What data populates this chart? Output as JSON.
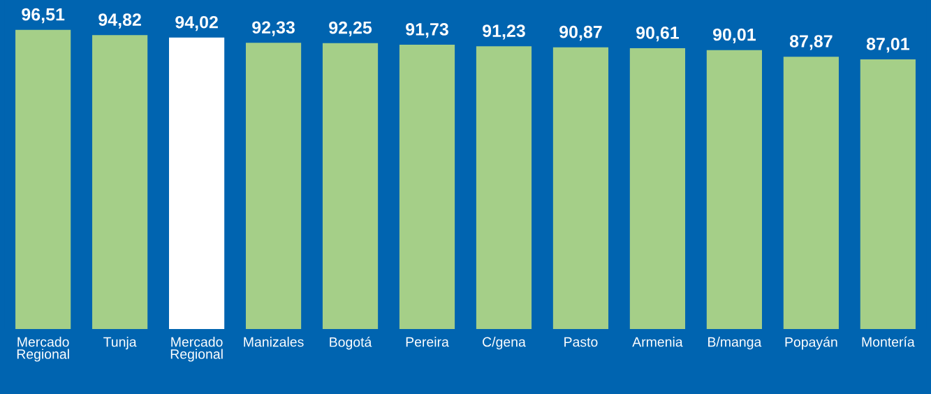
{
  "chart_data": {
    "type": "bar",
    "categories": [
      "Mercado\nRegional",
      "Tunja",
      "Mercado\nRegional",
      "Manizales",
      "Bogotá",
      "Pereira",
      "C/gena",
      "Pasto",
      "Armenia",
      "B/manga",
      "Popayán",
      "Montería"
    ],
    "values": [
      96.51,
      94.82,
      94.02,
      92.33,
      92.25,
      91.73,
      91.23,
      90.87,
      90.61,
      90.01,
      87.87,
      87.01
    ],
    "colors": [
      "#a5cf88",
      "#a5cf88",
      "#ffffff",
      "#a5cf88",
      "#a5cf88",
      "#a5cf88",
      "#a5cf88",
      "#a5cf88",
      "#a5cf88",
      "#a5cf88",
      "#a5cf88",
      "#a5cf88"
    ],
    "value_labels": [
      "96,51",
      "94,82",
      "94,02",
      "92,33",
      "92,25",
      "91,73",
      "91,23",
      "90,87",
      "90,61",
      "90,01",
      "87,87",
      "87,01"
    ],
    "tick_labels": "x",
    "grid": false,
    "legend": false
  }
}
